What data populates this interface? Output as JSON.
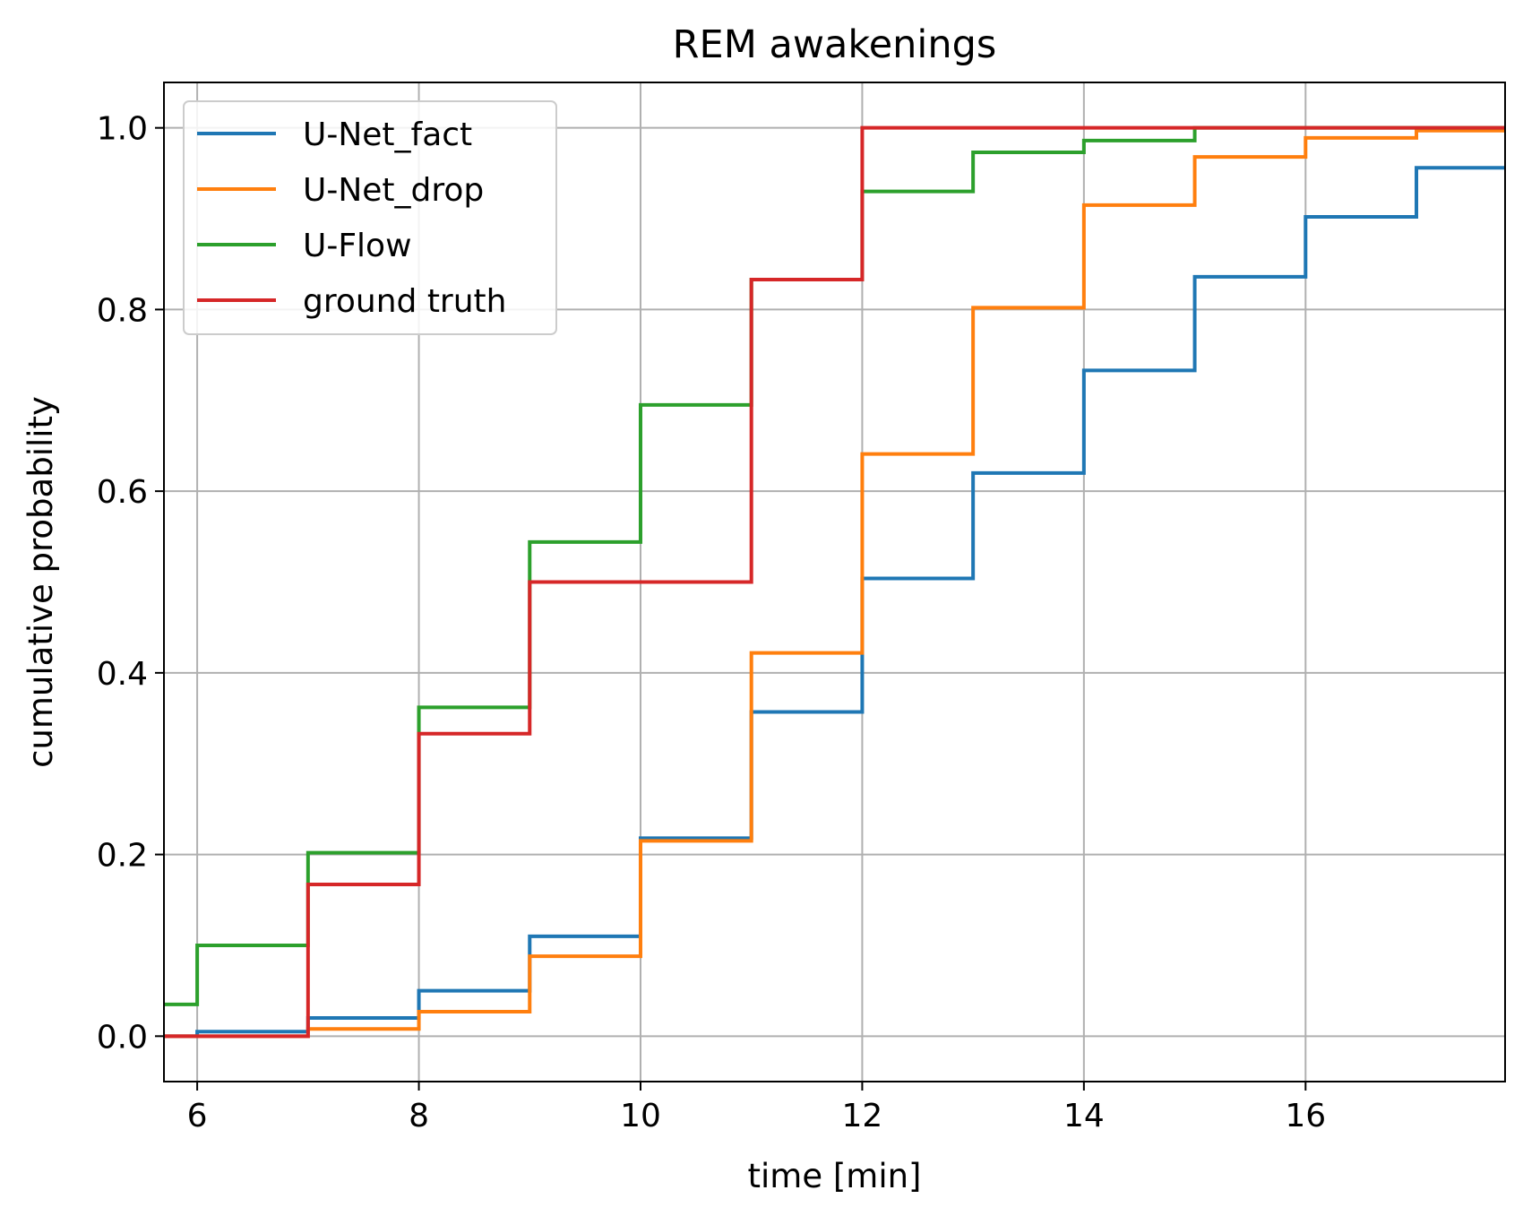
{
  "chart_data": {
    "type": "line",
    "step": "post",
    "title": "REM awakenings",
    "xlabel": "time [min]",
    "ylabel": "cumulative probability",
    "xlim": [
      5.7,
      17.8
    ],
    "ylim": [
      -0.05,
      1.05
    ],
    "xticks": [
      6,
      8,
      10,
      12,
      14,
      16
    ],
    "xtick_labels": [
      "6",
      "8",
      "10",
      "12",
      "14",
      "16"
    ],
    "yticks": [
      0.0,
      0.2,
      0.4,
      0.6,
      0.8,
      1.0
    ],
    "ytick_labels": [
      "0.0",
      "0.2",
      "0.4",
      "0.6",
      "0.8",
      "1.0"
    ],
    "grid": true,
    "legend_position": "upper-left",
    "series": [
      {
        "name": "U-Net_fact",
        "color": "#1f77b4",
        "x": [
          5.7,
          6,
          7,
          8,
          9,
          10,
          11,
          12,
          13,
          14,
          15,
          16,
          17,
          17.8
        ],
        "y": [
          0.0,
          0.005,
          0.02,
          0.05,
          0.11,
          0.218,
          0.357,
          0.504,
          0.62,
          0.733,
          0.836,
          0.902,
          0.956,
          0.956
        ]
      },
      {
        "name": "U-Net_drop",
        "color": "#ff7f0e",
        "x": [
          5.7,
          7,
          8,
          9,
          10,
          11,
          12,
          13,
          14,
          15,
          16,
          17,
          17.8
        ],
        "y": [
          0.0,
          0.008,
          0.027,
          0.088,
          0.215,
          0.422,
          0.641,
          0.802,
          0.915,
          0.968,
          0.989,
          0.997,
          0.997
        ]
      },
      {
        "name": "U-Flow",
        "color": "#2ca02c",
        "x": [
          5.7,
          6,
          7,
          8,
          9,
          10,
          11,
          12,
          13,
          14,
          15,
          17.8
        ],
        "y": [
          0.035,
          0.1,
          0.202,
          0.362,
          0.544,
          0.695,
          0.833,
          0.93,
          0.973,
          0.986,
          1.0,
          1.0
        ]
      },
      {
        "name": "ground truth",
        "color": "#d62728",
        "x": [
          5.7,
          7,
          8,
          9,
          11,
          12,
          17.8
        ],
        "y": [
          0.0,
          0.167,
          0.333,
          0.5,
          0.833,
          1.0,
          1.0
        ]
      }
    ]
  }
}
